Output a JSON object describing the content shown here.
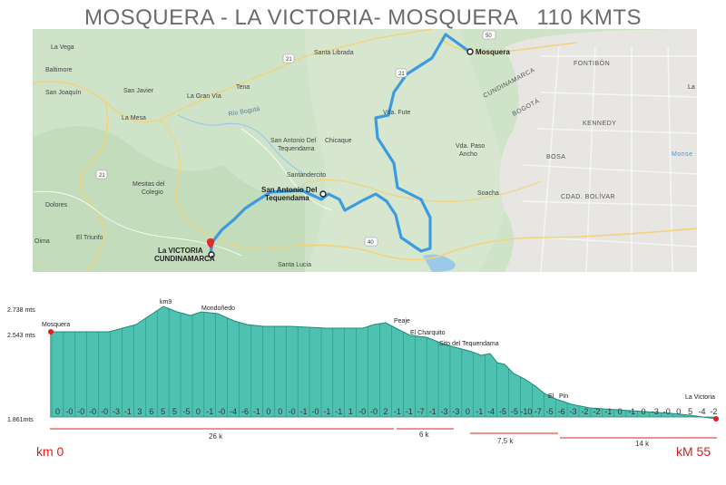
{
  "title": "MOSQUERA - LA VICTORIA- MOSQUERA   110 KMTS",
  "map": {
    "places": [
      {
        "text": "La Vega",
        "kind": "lbl"
      },
      {
        "text": "Baltimore",
        "kind": "lbl"
      },
      {
        "text": "San Joaquín",
        "kind": "lbl"
      },
      {
        "text": "San Javier",
        "kind": "lbl"
      },
      {
        "text": "La Gran Vía",
        "kind": "lbl"
      },
      {
        "text": "Tena",
        "kind": "lbl"
      },
      {
        "text": "Santa Librada",
        "kind": "lbl"
      },
      {
        "text": "La Mesa",
        "kind": "lbl"
      },
      {
        "text": "San Antonio Del",
        "kind": "lbl"
      },
      {
        "text": "Tequendama",
        "kind": "lbl"
      },
      {
        "text": "Chicaque",
        "kind": "lbl"
      },
      {
        "text": "Santandercito",
        "kind": "lbl"
      },
      {
        "text": "Mesitas del",
        "kind": "lbl"
      },
      {
        "text": "Colegio",
        "kind": "lbl"
      },
      {
        "text": "Dolores",
        "kind": "lbl"
      },
      {
        "text": "El Triunfo",
        "kind": "lbl"
      },
      {
        "text": "Santa Lucia",
        "kind": "lbl"
      },
      {
        "text": "Vda. Fute",
        "kind": "lbl"
      },
      {
        "text": "Vda. Paso",
        "kind": "lbl"
      },
      {
        "text": "Ancho",
        "kind": "lbl"
      },
      {
        "text": "Soacha",
        "kind": "lbl"
      },
      {
        "text": "CUNDINAMARCA",
        "kind": "city"
      },
      {
        "text": "BOGOTÁ",
        "kind": "city"
      },
      {
        "text": "KENNEDY",
        "kind": "city"
      },
      {
        "text": "FONTIBÓN",
        "kind": "city"
      },
      {
        "text": "BOSA",
        "kind": "city"
      },
      {
        "text": "CDAD. BOLÍVAR",
        "kind": "city"
      },
      {
        "text": "Monse",
        "kind": "city"
      },
      {
        "text": "Río Bogotá",
        "kind": "lbl"
      },
      {
        "text": "Oima",
        "kind": "lbl"
      },
      {
        "text": "50",
        "kind": "lbl"
      },
      {
        "text": "40",
        "kind": "lbl"
      },
      {
        "text": "La",
        "kind": "lbl"
      }
    ],
    "markers": {
      "start": "Mosquera",
      "waypoint_line1": "San Antonio Del",
      "waypoint_line2": "Tequendama",
      "end_line1": "La VICTORIA",
      "end_line2": "CUNDINAMARCA"
    },
    "road_shields": [
      "50",
      "21",
      "21",
      "40",
      "21"
    ],
    "route_color": "#3c9be0"
  },
  "profile": {
    "elevations": [
      "2.738 mts",
      "2.543 mts",
      "1.861mts"
    ],
    "waypoints": [
      "km9",
      "Mondoñedo",
      "Mosquera",
      "Peaje",
      "El Charquito",
      "Sito del Tequendama",
      "El",
      "Pin",
      "La Victoria"
    ],
    "grade_labels": [
      "0",
      "-0",
      "-0",
      "-0",
      "-0",
      "-3",
      "-1",
      "3",
      "6",
      "5",
      "5",
      "-5",
      "0",
      "-1",
      "-0",
      "-4",
      "-6",
      "-1",
      "0",
      "0",
      "-0",
      "-1",
      "-0",
      "-1",
      "-1",
      "1",
      "-0",
      "-0",
      "2",
      "-1",
      "-1",
      "-7",
      "-1",
      "-3",
      "-3",
      "0",
      "-1",
      "-4",
      "-5",
      "-5",
      "-10",
      "-7",
      "-5",
      "-6",
      "-3",
      "-2",
      "-2",
      "-1",
      "0",
      "-1",
      "0",
      "-3",
      "-0",
      "0",
      "5",
      "-4",
      "-2"
    ],
    "segments": [
      "26 k",
      "6 k",
      "7.5 k",
      "14 k"
    ],
    "km_start": "km 0",
    "km_end": "kM 55",
    "fill_color": "#4fc1b0",
    "line_color": "#1d8a7a",
    "marker_color": "#e02020"
  }
}
